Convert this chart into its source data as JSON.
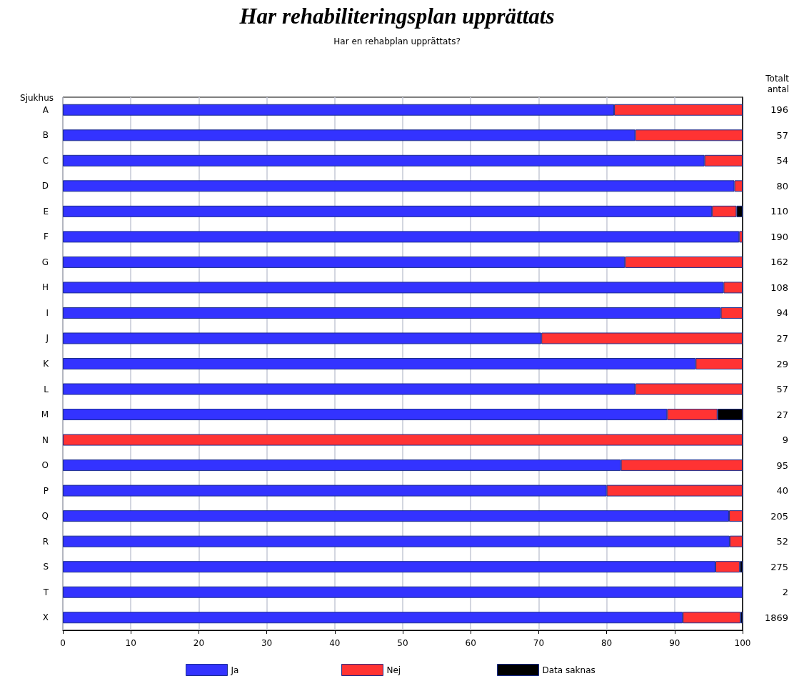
{
  "chart_data": {
    "type": "bar",
    "orientation": "horizontal",
    "stacked": true,
    "title": "Har rehabiliteringsplan upprättats",
    "subtitle": "Har en rehabplan upprättats?",
    "ylabel": "Sjukhus",
    "y2label": "Totalt antal",
    "categories": [
      "A",
      "B",
      "C",
      "D",
      "E",
      "F",
      "G",
      "H",
      "I",
      "J",
      "K",
      "L",
      "M",
      "N",
      "O",
      "P",
      "Q",
      "R",
      "S",
      "T",
      "X"
    ],
    "y2_categories": [
      "196",
      "57",
      "54",
      "80",
      "110",
      "190",
      "162",
      "108",
      "94",
      "27",
      "29",
      "57",
      "27",
      "9",
      "95",
      "40",
      "205",
      "52",
      "275",
      "2",
      "1869"
    ],
    "series": [
      {
        "name": "Ja",
        "color": "#3333ff",
        "values": [
          81.1,
          84.2,
          94.4,
          98.8,
          95.5,
          99.5,
          82.7,
          97.2,
          96.8,
          70.4,
          93.1,
          84.2,
          88.9,
          null,
          82.1,
          80,
          98.0,
          98.1,
          96.0,
          100,
          91.2
        ]
      },
      {
        "name": "Nej",
        "color": "#ff3333",
        "values": [
          18.9,
          15.8,
          5.6,
          1.2,
          3.6,
          0.5,
          17.3,
          2.8,
          3.2,
          29.6,
          6.9,
          15.8,
          7.4,
          100,
          17.9,
          20,
          2.0,
          1.9,
          3.6,
          null,
          8.5
        ]
      },
      {
        "name": "Data saknas",
        "color": "#000000",
        "values": [
          null,
          null,
          null,
          null,
          0.9,
          null,
          null,
          null,
          null,
          null,
          null,
          null,
          3.7,
          null,
          null,
          null,
          null,
          null,
          0.4,
          null,
          0.3
        ]
      }
    ],
    "xlim": [
      0,
      100
    ],
    "xticks": [
      0,
      10,
      20,
      30,
      40,
      50,
      60,
      70,
      80,
      90,
      100
    ],
    "grid": "x",
    "legend": "bottom"
  }
}
